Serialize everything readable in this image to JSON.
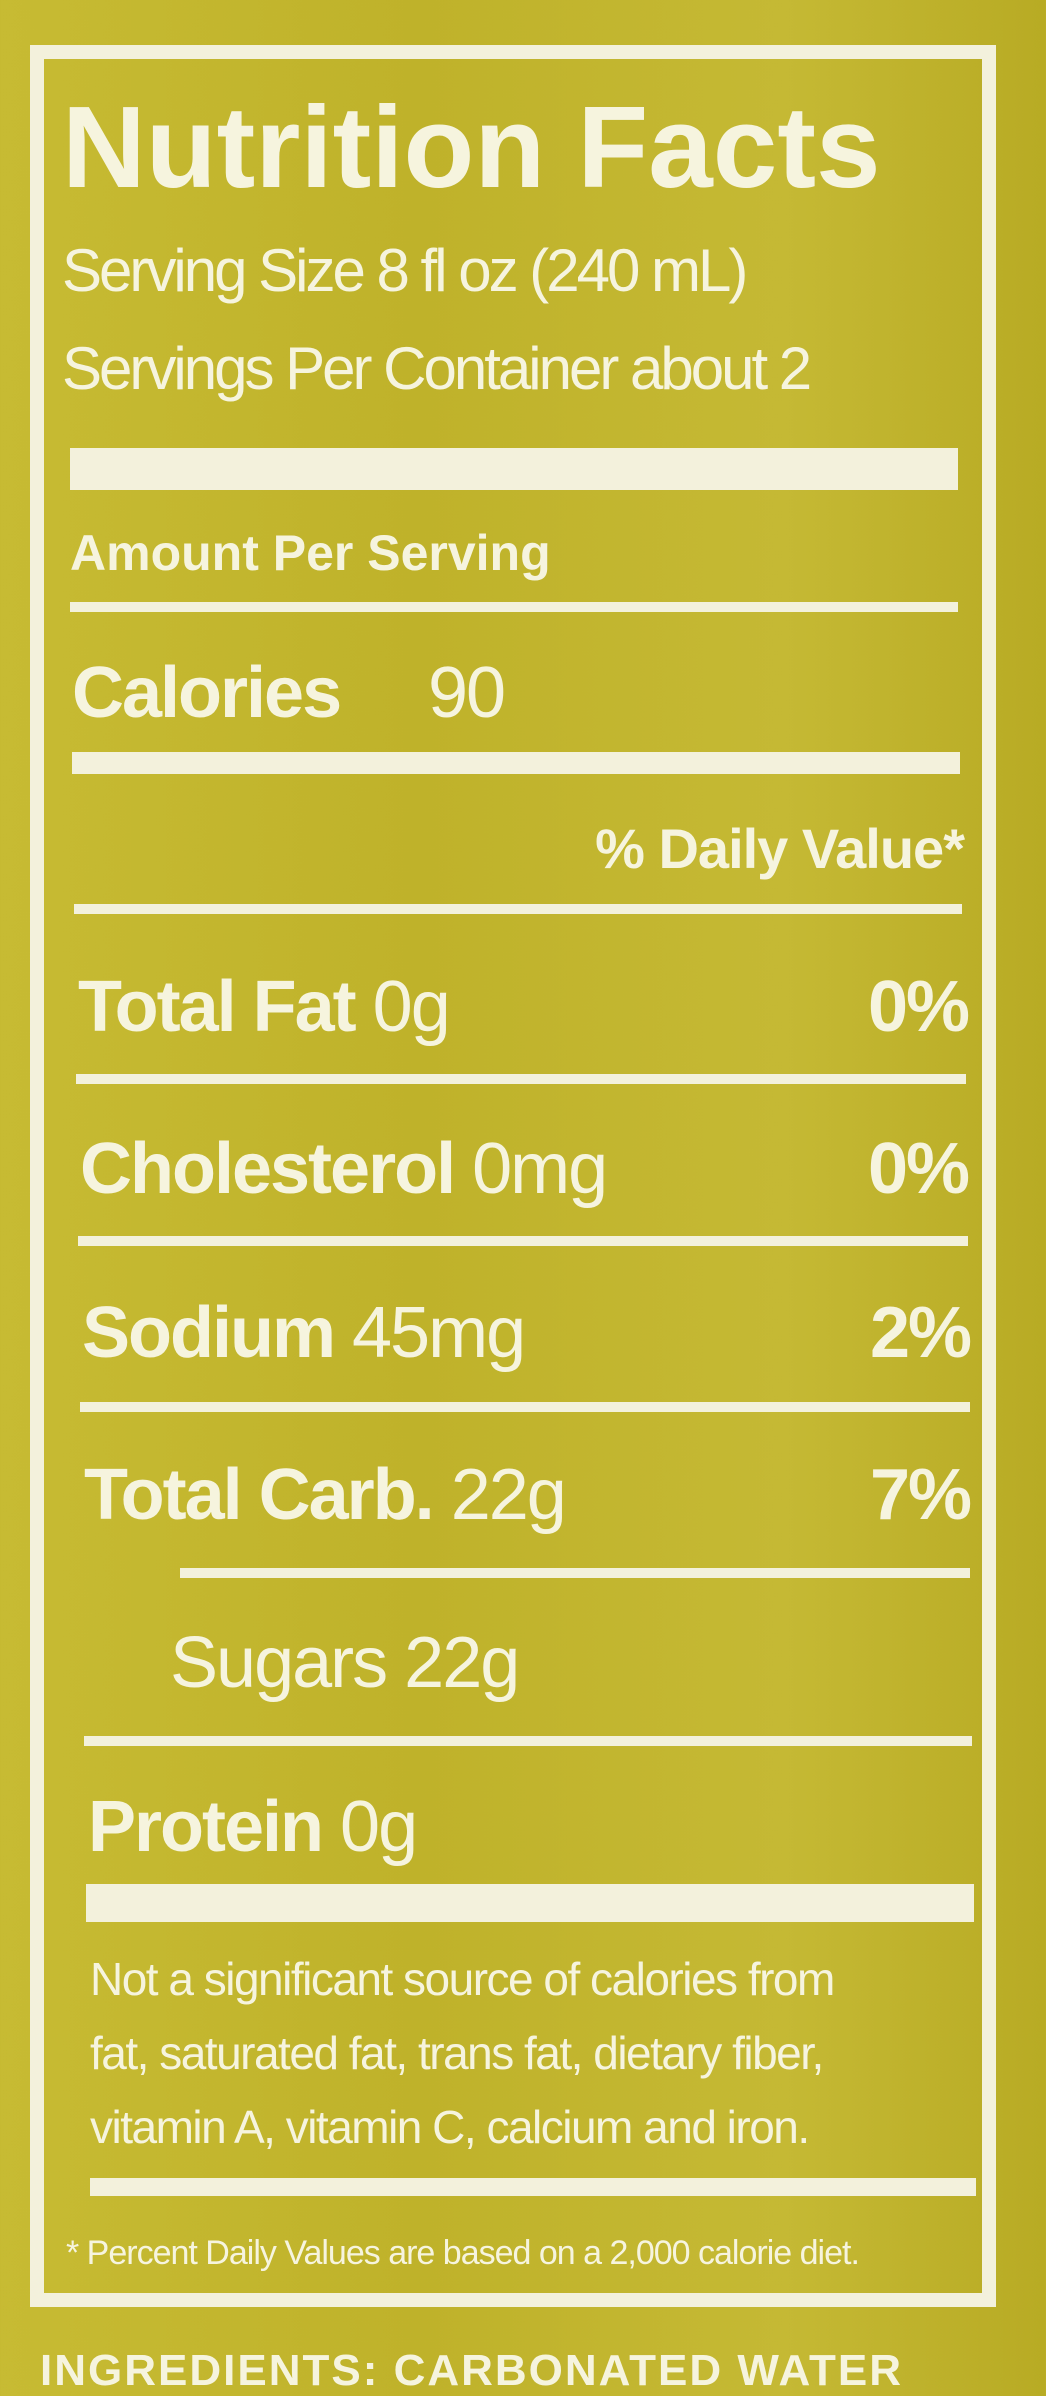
{
  "label": {
    "title": "Nutrition Facts",
    "serving_size": "Serving Size 8 fl oz (240 mL)",
    "servings_per_container": "Servings Per Container about 2",
    "amount_per_serving": "Amount Per Serving",
    "calories": {
      "label": "Calories",
      "value": "90"
    },
    "daily_value_header": "% Daily Value*",
    "nutrients": [
      {
        "name": "Total Fat",
        "amount": "0g",
        "dv": "0%"
      },
      {
        "name": "Cholesterol",
        "amount": "0mg",
        "dv": "0%"
      },
      {
        "name": "Sodium",
        "amount": "45mg",
        "dv": "2%"
      },
      {
        "name": "Total Carb.",
        "amount": "22g",
        "dv": "7%"
      },
      {
        "name": "Sugars",
        "amount": "22g",
        "dv": ""
      },
      {
        "name": "Protein",
        "amount": "0g",
        "dv": ""
      }
    ],
    "note_lines": [
      "Not a significant source of calories from",
      "fat, saturated fat, trans fat, dietary fiber,",
      "vitamin A, vitamin C, calcium and iron."
    ],
    "footnote": "* Percent Daily Values are based on a 2,000 calorie diet.",
    "ingredients_partial": "INGREDIENTS: CARBONATED WATER"
  },
  "colors": {
    "background": "#c2b52e",
    "text": "#f6f4de"
  }
}
